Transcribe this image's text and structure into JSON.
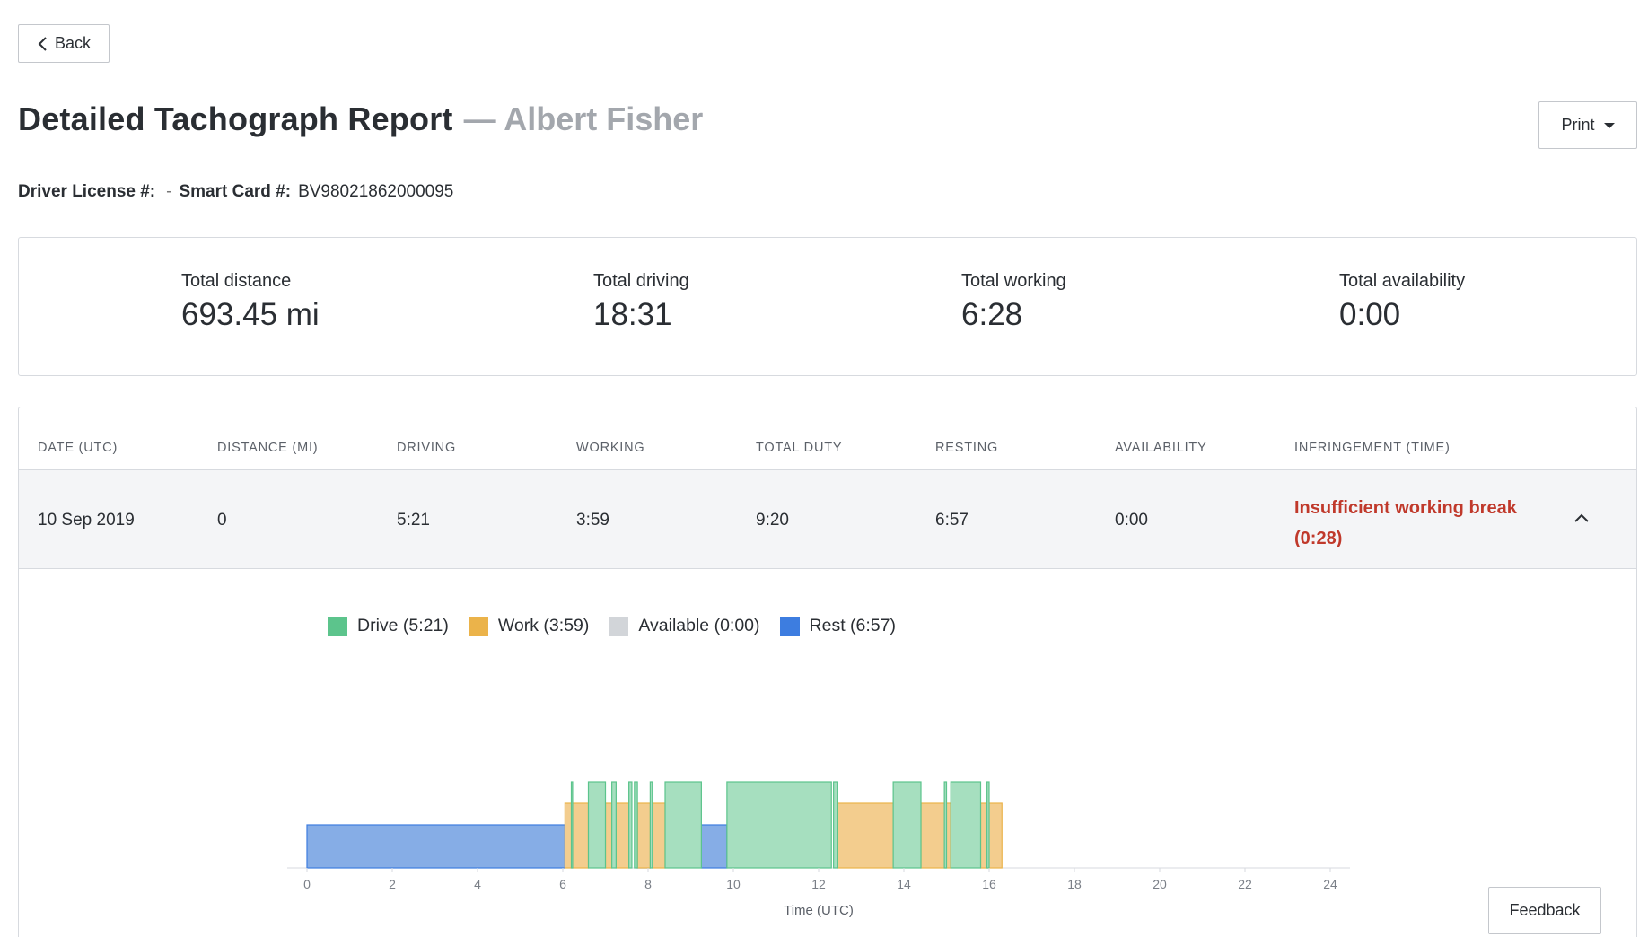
{
  "nav": {
    "back_label": "Back"
  },
  "header": {
    "title": "Detailed Tachograph Report",
    "subtitle": "— Albert Fisher",
    "print_label": "Print"
  },
  "driver": {
    "license_label": "Driver License #:",
    "license_value": "-",
    "smart_card_label": "Smart Card #:",
    "smart_card_value": "BV98021862000095"
  },
  "totals": [
    {
      "label": "Total distance",
      "value": "693.45 mi"
    },
    {
      "label": "Total driving",
      "value": "18:31"
    },
    {
      "label": "Total working",
      "value": "6:28"
    },
    {
      "label": "Total availability",
      "value": "0:00"
    }
  ],
  "table": {
    "columns": [
      "DATE (UTC)",
      "DISTANCE (MI)",
      "DRIVING",
      "WORKING",
      "TOTAL DUTY",
      "RESTING",
      "AVAILABILITY",
      "INFRINGEMENT (TIME)"
    ],
    "rows": [
      {
        "date": "10 Sep 2019",
        "distance": "0",
        "driving": "5:21",
        "working": "3:59",
        "total_duty": "9:20",
        "resting": "6:57",
        "availability": "0:00",
        "infringement": "Insufficient working break (0:28)"
      }
    ]
  },
  "colors": {
    "drive": "#5cc48c",
    "work": "#ebb34a",
    "available": "#d2d5d9",
    "rest": "#3d7de0",
    "infringement": "#c0392b"
  },
  "chart_data": {
    "type": "timeline",
    "legend": [
      {
        "key": "drive",
        "label": "Drive (5:21)"
      },
      {
        "key": "work",
        "label": "Work (3:59)"
      },
      {
        "key": "available",
        "label": "Available (0:00)"
      },
      {
        "key": "rest",
        "label": "Rest (6:57)"
      }
    ],
    "xlabel": "Time (UTC)",
    "xlim": [
      0,
      24
    ],
    "xticks": [
      0,
      2,
      4,
      6,
      8,
      10,
      12,
      14,
      16,
      18,
      20,
      22,
      24
    ],
    "segments": [
      {
        "activity": "rest",
        "start": 0.0,
        "end": 6.05
      },
      {
        "activity": "work",
        "start": 6.05,
        "end": 6.6
      },
      {
        "activity": "drive",
        "start": 6.2,
        "end": 6.23
      },
      {
        "activity": "drive",
        "start": 6.6,
        "end": 7.0
      },
      {
        "activity": "work",
        "start": 7.0,
        "end": 7.15
      },
      {
        "activity": "drive",
        "start": 7.15,
        "end": 7.25
      },
      {
        "activity": "work",
        "start": 7.25,
        "end": 7.55
      },
      {
        "activity": "drive",
        "start": 7.55,
        "end": 7.62
      },
      {
        "activity": "drive",
        "start": 7.68,
        "end": 7.75
      },
      {
        "activity": "work",
        "start": 7.75,
        "end": 8.05
      },
      {
        "activity": "rest",
        "start": 7.75,
        "end": 8.05
      },
      {
        "activity": "drive",
        "start": 8.05,
        "end": 8.1
      },
      {
        "activity": "work",
        "start": 8.1,
        "end": 8.4
      },
      {
        "activity": "drive",
        "start": 8.4,
        "end": 9.25
      },
      {
        "activity": "rest",
        "start": 9.25,
        "end": 9.85
      },
      {
        "activity": "drive",
        "start": 9.85,
        "end": 12.3
      },
      {
        "activity": "drive",
        "start": 12.35,
        "end": 12.45
      },
      {
        "activity": "work",
        "start": 12.45,
        "end": 13.75
      },
      {
        "activity": "drive",
        "start": 13.75,
        "end": 14.4
      },
      {
        "activity": "work",
        "start": 14.4,
        "end": 15.1
      },
      {
        "activity": "drive",
        "start": 14.95,
        "end": 15.0
      },
      {
        "activity": "drive",
        "start": 15.1,
        "end": 15.8
      },
      {
        "activity": "work",
        "start": 15.8,
        "end": 16.3
      },
      {
        "activity": "drive",
        "start": 15.95,
        "end": 16.0
      }
    ]
  },
  "feedback": {
    "label": "Feedback"
  }
}
